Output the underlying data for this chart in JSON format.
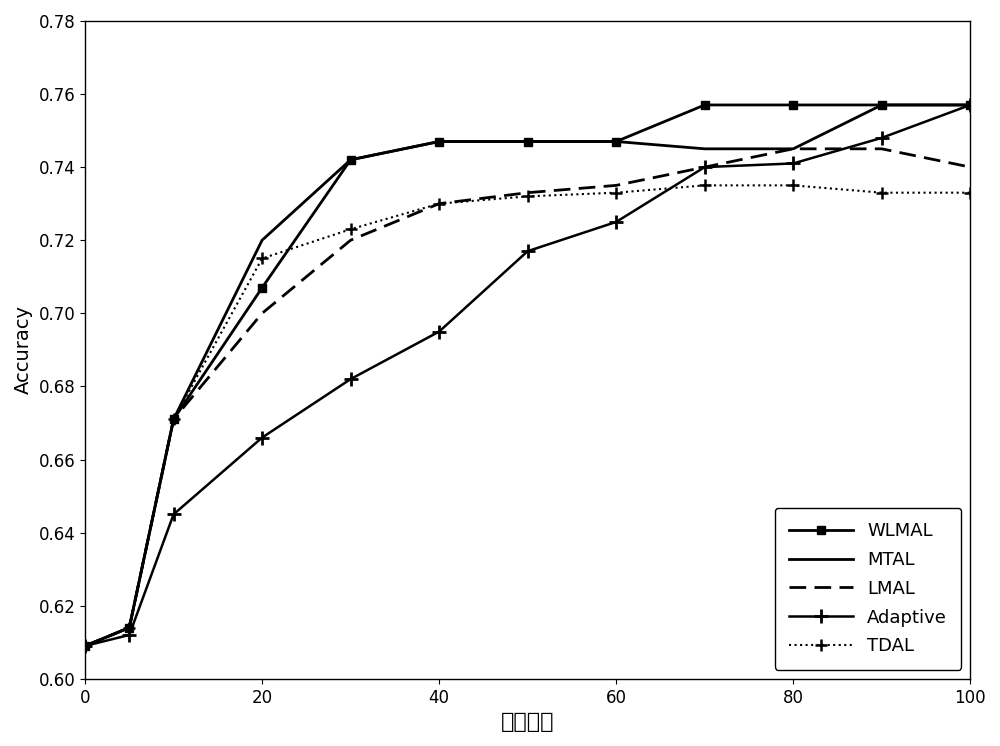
{
  "x": [
    0,
    5,
    10,
    20,
    30,
    40,
    50,
    60,
    70,
    80,
    90,
    100
  ],
  "WLMAL": [
    0.609,
    0.614,
    0.671,
    0.707,
    0.742,
    0.747,
    0.747,
    0.747,
    0.757,
    0.757,
    0.757,
    0.757
  ],
  "MTAL": [
    0.609,
    0.614,
    0.671,
    0.72,
    0.742,
    0.747,
    0.747,
    0.747,
    0.745,
    0.745,
    0.757,
    0.757
  ],
  "LMAL": [
    0.609,
    0.614,
    0.671,
    0.7,
    0.72,
    0.73,
    0.733,
    0.735,
    0.74,
    0.745,
    0.745,
    0.74
  ],
  "Adaptive": [
    0.609,
    0.612,
    0.645,
    0.666,
    0.682,
    0.695,
    0.717,
    0.725,
    0.74,
    0.741,
    0.748,
    0.757
  ],
  "TDAL": [
    0.609,
    0.614,
    0.671,
    0.715,
    0.723,
    0.73,
    0.732,
    0.733,
    0.735,
    0.735,
    0.733,
    0.733
  ],
  "xlabel": "迭代次数",
  "ylabel": "Accuracy",
  "ylim": [
    0.6,
    0.78
  ],
  "xlim": [
    0,
    100
  ],
  "yticks": [
    0.6,
    0.62,
    0.64,
    0.66,
    0.68,
    0.7,
    0.72,
    0.74,
    0.76,
    0.78
  ],
  "xticks": [
    0,
    20,
    40,
    60,
    80,
    100
  ],
  "background_color": "#ffffff",
  "line_color": "#000000"
}
